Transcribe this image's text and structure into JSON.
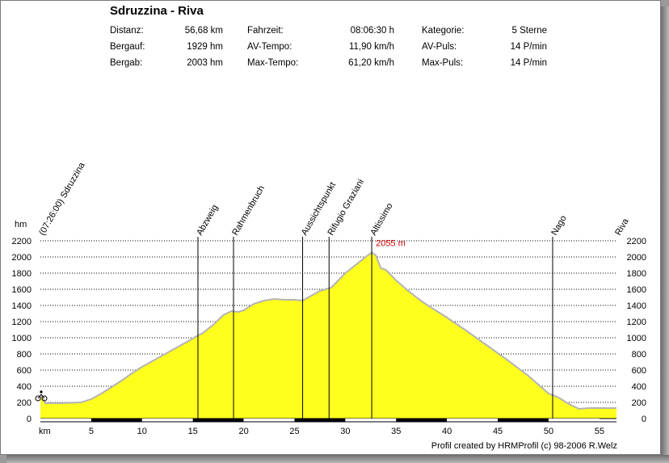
{
  "header": {
    "title": "Sdruzzina - Riva",
    "stats": [
      {
        "label": "Distanz:",
        "value": "56,68 km"
      },
      {
        "label": "Bergauf:",
        "value": "1929 hm"
      },
      {
        "label": "Bergab:",
        "value": "2003 hm"
      },
      {
        "label": "Fahrzeit:",
        "value": "08:06:30 h"
      },
      {
        "label": "AV-Tempo:",
        "value": "11,90 km/h"
      },
      {
        "label": "Max-Tempo:",
        "value": "61,20 km/h"
      },
      {
        "label": "Kategorie:",
        "value": "5 Sterne"
      },
      {
        "label": "AV-Puls:",
        "value": "14 P/min"
      },
      {
        "label": "Max-Puls:",
        "value": "14 P/min"
      }
    ]
  },
  "footer": {
    "credit": "Profil created by HRMProfil (c) 98-2006 R.Welz"
  },
  "colors": {
    "fill": "#ffff1e",
    "outline": "#b4b4b4",
    "peak_label": "#cc0000",
    "background": "#ffffff"
  },
  "start_icon": "bicycle-icon",
  "chart_data": {
    "type": "area",
    "xlabel": "km",
    "ylabel": "hm",
    "xlim": [
      0,
      56.68
    ],
    "ylim": [
      0,
      2200
    ],
    "x_ticks": [
      5,
      10,
      15,
      20,
      25,
      30,
      35,
      40,
      45,
      50,
      55
    ],
    "y_ticks": [
      0,
      200,
      400,
      600,
      800,
      1000,
      1200,
      1400,
      1600,
      1800,
      2000,
      2200
    ],
    "grid": "horizontal dotted",
    "series": [
      {
        "x": [
          0,
          0.5,
          2,
          4,
          5,
          6,
          7,
          8,
          9,
          10,
          11,
          12,
          13,
          14,
          15,
          15.5,
          16,
          17,
          18,
          18.8,
          19.5,
          20,
          20.5,
          21,
          22,
          23,
          24,
          25,
          25.8,
          26.5,
          27.5,
          28.6,
          29,
          30,
          31,
          32,
          32.6,
          33,
          33.5,
          34,
          35,
          36,
          37,
          38,
          40,
          42,
          44,
          46,
          48,
          49,
          50,
          51,
          52,
          53,
          54,
          55,
          56.68
        ],
        "y": [
          290,
          190,
          190,
          200,
          240,
          310,
          390,
          470,
          560,
          640,
          710,
          780,
          850,
          920,
          990,
          1030,
          1060,
          1160,
          1280,
          1330,
          1320,
          1340,
          1380,
          1420,
          1460,
          1480,
          1470,
          1470,
          1460,
          1510,
          1580,
          1620,
          1670,
          1800,
          1900,
          2000,
          2055,
          2020,
          1860,
          1840,
          1710,
          1600,
          1500,
          1410,
          1250,
          1080,
          900,
          720,
          530,
          420,
          310,
          260,
          180,
          120,
          130,
          130,
          130
        ]
      }
    ],
    "peak_label": {
      "x": 32.6,
      "y": 2055,
      "text": "2055 m"
    },
    "waypoints": [
      {
        "x": 0,
        "label": "(07:26:00) Sdruzzina",
        "line": false
      },
      {
        "x": 15.5,
        "label": "Abzweig",
        "line": true
      },
      {
        "x": 19,
        "label": "Rahmenbruch",
        "line": true
      },
      {
        "x": 25.8,
        "label": "Aussichtspunkt",
        "line": true
      },
      {
        "x": 28.4,
        "label": "Rifugio Graziani",
        "line": true
      },
      {
        "x": 32.6,
        "label": "Altissimo",
        "line": true
      },
      {
        "x": 50.4,
        "label": "Nago",
        "line": true
      },
      {
        "x": 56.68,
        "label": "Riva",
        "line": false
      }
    ],
    "scale_bar_segments": 11
  }
}
